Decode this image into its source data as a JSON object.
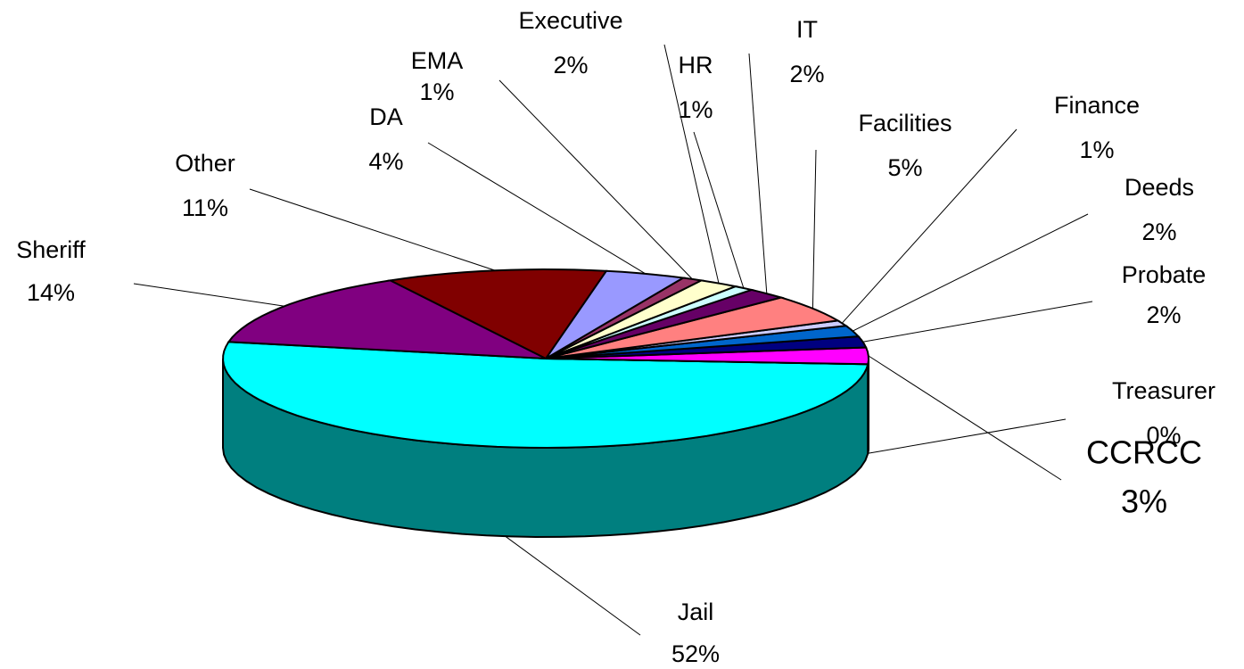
{
  "chart_data": {
    "type": "pie3d",
    "categories": [
      "Jail",
      "Treasurer",
      "CCRCC",
      "Probate",
      "Deeds",
      "Finance",
      "Facilities",
      "IT",
      "HR",
      "Executive",
      "EMA",
      "DA",
      "Other",
      "Sheriff"
    ],
    "values": [
      52,
      0,
      3,
      2,
      2,
      1,
      5,
      2,
      1,
      2,
      1,
      4,
      11,
      14
    ],
    "value_labels": [
      "52%",
      "0%",
      "3%",
      "2%",
      "2%",
      "1%",
      "5%",
      "2%",
      "1%",
      "2%",
      "1%",
      "4%",
      "11%",
      "14%"
    ],
    "colors": [
      "#00ffff",
      "#ffff00",
      "#ff00ff",
      "#000080",
      "#0066cc",
      "#ccccff",
      "#ff8080",
      "#660066",
      "#ccffff",
      "#ffffcc",
      "#993366",
      "#9999ff",
      "#800000",
      "#800080"
    ]
  }
}
